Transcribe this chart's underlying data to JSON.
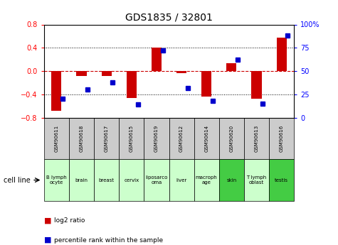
{
  "title": "GDS1835 / 32801",
  "samples": [
    "GSM90611",
    "GSM90618",
    "GSM90617",
    "GSM90615",
    "GSM90619",
    "GSM90612",
    "GSM90614",
    "GSM90620",
    "GSM90613",
    "GSM90616"
  ],
  "cell_lines": [
    "B lymph\nocyte",
    "brain",
    "breast",
    "cervix",
    "liposarco\noma",
    "liver",
    "macroph\nage",
    "skin",
    "T lymph\noblast",
    "testis"
  ],
  "log2_ratio": [
    -0.68,
    -0.08,
    -0.08,
    -0.46,
    0.4,
    -0.04,
    -0.44,
    0.14,
    -0.48,
    0.58
  ],
  "percentile_rank": [
    20,
    30,
    38,
    14,
    72,
    32,
    18,
    62,
    15,
    88
  ],
  "ylim_left": [
    -0.8,
    0.8
  ],
  "ylim_right": [
    0,
    100
  ],
  "bar_color": "#cc0000",
  "dot_color": "#0000cc",
  "bg_color_gsm": "#cccccc",
  "bg_color_cell_light": "#ccffcc",
  "bg_color_cell_dark": "#44cc44",
  "dashed_line_color": "#cc0000",
  "grid_color": "#000000",
  "highlight_cols": [
    7,
    9
  ],
  "legend_red": "log2 ratio",
  "legend_blue": "percentile rank within the sample",
  "cell_line_label": "cell line"
}
